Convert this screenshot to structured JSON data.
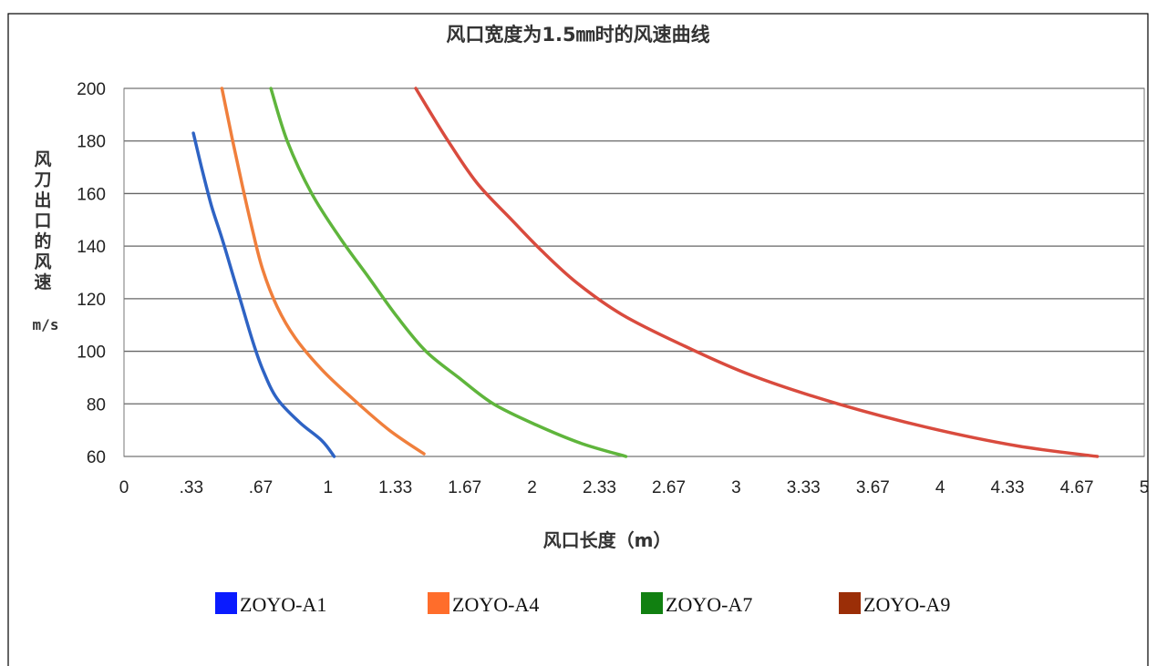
{
  "chart_data": {
    "type": "line",
    "title": "风口宽度为1.5㎜时的风速曲线",
    "xlabel": "风口长度（m）",
    "ylabel": "风刀出口的风速",
    "yunit": "m/s",
    "xlim": [
      0,
      5
    ],
    "ylim": [
      60,
      200
    ],
    "x_ticks": [
      "0",
      ".33",
      ".67",
      "1",
      "1.33",
      "1.67",
      "2",
      "2.33",
      "2.67",
      "3",
      "3.33",
      "3.67",
      "4",
      "4.33",
      "4.67",
      "5"
    ],
    "x_tick_values": [
      0,
      0.33,
      0.67,
      1,
      1.33,
      1.67,
      2,
      2.33,
      2.67,
      3,
      3.33,
      3.67,
      4,
      4.33,
      4.67,
      5
    ],
    "y_ticks": [
      "60",
      "80",
      "100",
      "120",
      "140",
      "160",
      "180",
      "200"
    ],
    "y_tick_values": [
      60,
      80,
      100,
      120,
      140,
      160,
      180,
      200
    ],
    "grid": "horizontal",
    "legend_position": "bottom",
    "series": [
      {
        "name": "ZOYO-A1",
        "color": "#2e63c4",
        "x": [
          0.34,
          0.38,
          0.43,
          0.48,
          0.53,
          0.58,
          0.63,
          0.68,
          0.75,
          0.86,
          0.97,
          1.03
        ],
        "y": [
          183,
          170,
          155,
          143,
          130,
          117,
          104,
          93,
          82,
          73,
          66,
          60
        ]
      },
      {
        "name": "ZOYO-A4",
        "color": "#f07f3c",
        "x": [
          0.48,
          0.53,
          0.58,
          0.63,
          0.68,
          0.75,
          0.84,
          0.97,
          1.12,
          1.3,
          1.47
        ],
        "y": [
          200,
          181,
          163,
          146,
          131,
          117,
          105,
          93,
          82,
          70,
          61
        ]
      },
      {
        "name": "ZOYO-A7",
        "color": "#5fb53c",
        "x": [
          0.72,
          0.8,
          0.92,
          1.06,
          1.2,
          1.34,
          1.48,
          1.64,
          1.81,
          2.02,
          2.24,
          2.46
        ],
        "y": [
          200,
          180,
          160,
          143,
          128,
          113,
          100,
          90,
          80,
          72,
          65,
          60
        ]
      },
      {
        "name": "ZOYO-A9",
        "color": "#d94b3e",
        "x": [
          1.43,
          1.58,
          1.73,
          1.9,
          2.05,
          2.22,
          2.44,
          2.72,
          3.07,
          3.5,
          3.94,
          4.38,
          4.77
        ],
        "y": [
          200,
          181,
          164,
          150,
          138,
          126,
          114,
          103,
          91,
          80,
          71,
          64,
          60
        ]
      }
    ]
  },
  "legend": {
    "items": [
      {
        "label": "ZOYO-A1",
        "color": "#0a1bff"
      },
      {
        "label": "ZOYO-A4",
        "color": "#ff6d2b"
      },
      {
        "label": "ZOYO-A7",
        "color": "#118011"
      },
      {
        "label": "ZOYO-A9",
        "color": "#9b2e07"
      }
    ]
  }
}
